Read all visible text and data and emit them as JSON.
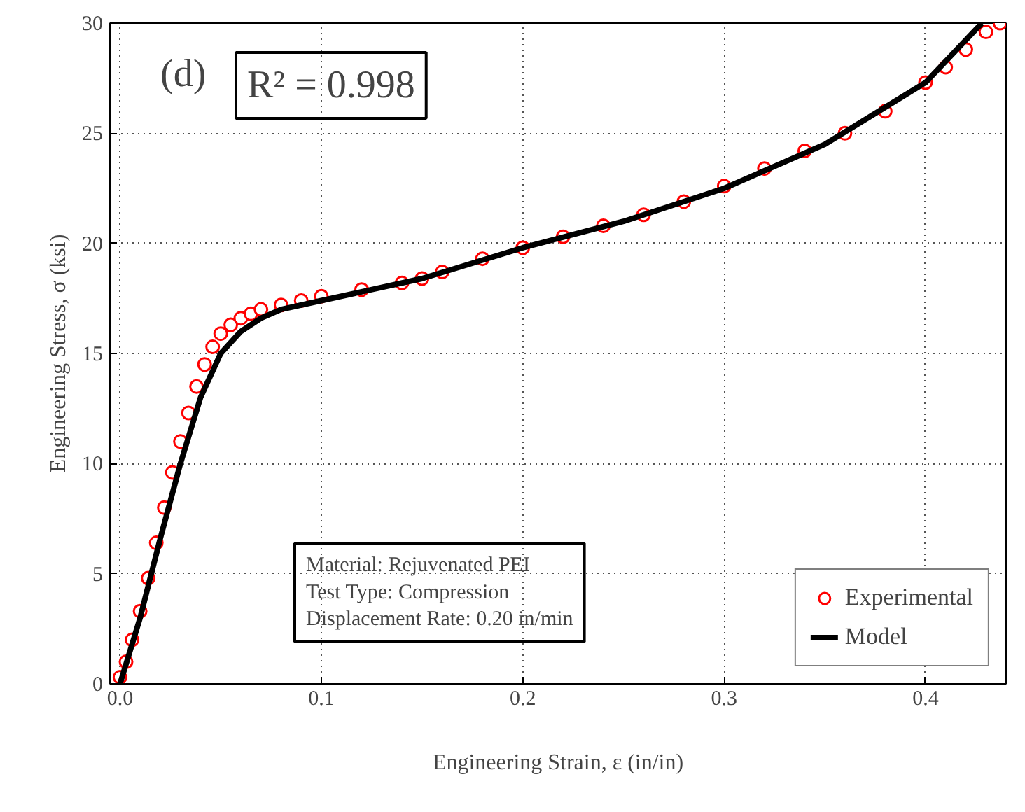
{
  "chart_data": {
    "type": "scatter",
    "xlabel": "Engineering Strain, ε (in/in)",
    "ylabel": "Engineering Stress, σ (ksi)",
    "xlim": [
      -0.005,
      0.44
    ],
    "ylim": [
      0,
      30
    ],
    "xticks": [
      {
        "value": 0,
        "label": "0.0"
      },
      0.1,
      0.2,
      0.3,
      0.4
    ],
    "yticks": [
      0,
      5,
      10,
      15,
      20,
      25,
      30
    ],
    "grid": true,
    "legend": "bottom right",
    "annotations": [
      "(d)",
      "R² = 0.998",
      "Material: Rejuvenated PEI",
      "Test Type: Compression",
      "Displacement Rate: 0.20 in/min"
    ],
    "series": [
      {
        "name": "Experimental",
        "color": "#ff0000",
        "marker": "circle",
        "x": [
          0,
          0.003,
          0.006,
          0.01,
          0.014,
          0.018,
          0.022,
          0.026,
          0.03,
          0.034,
          0.038,
          0.042,
          0.046,
          0.05,
          0.055,
          0.06,
          0.065,
          0.07,
          0.08,
          0.09,
          0.1,
          0.12,
          0.14,
          0.15,
          0.16,
          0.18,
          0.2,
          0.22,
          0.24,
          0.26,
          0.28,
          0.3,
          0.32,
          0.34,
          0.36,
          0.38,
          0.4,
          0.41,
          0.42,
          0.43,
          0.437
        ],
        "values": [
          0.3,
          1.0,
          2.0,
          3.3,
          4.8,
          6.4,
          8.0,
          9.6,
          11.0,
          12.3,
          13.5,
          14.5,
          15.3,
          15.9,
          16.3,
          16.6,
          16.8,
          17.0,
          17.2,
          17.4,
          17.6,
          17.9,
          18.2,
          18.4,
          18.7,
          19.3,
          19.8,
          20.3,
          20.8,
          21.3,
          21.9,
          22.6,
          23.4,
          24.2,
          25.0,
          26.0,
          27.3,
          28.0,
          28.8,
          29.6,
          30.0
        ]
      },
      {
        "name": "Model",
        "type": "line",
        "color": "#000000",
        "line_style": "solid",
        "x": [
          0,
          0.01,
          0.02,
          0.03,
          0.04,
          0.05,
          0.06,
          0.07,
          0.08,
          0.1,
          0.15,
          0.2,
          0.25,
          0.3,
          0.35,
          0.4,
          0.428
        ],
        "values": [
          0,
          3.0,
          6.6,
          10.0,
          13.0,
          15.0,
          16.0,
          16.6,
          17.0,
          17.4,
          18.4,
          19.8,
          21.0,
          22.5,
          24.5,
          27.3,
          30.0
        ]
      }
    ]
  }
}
